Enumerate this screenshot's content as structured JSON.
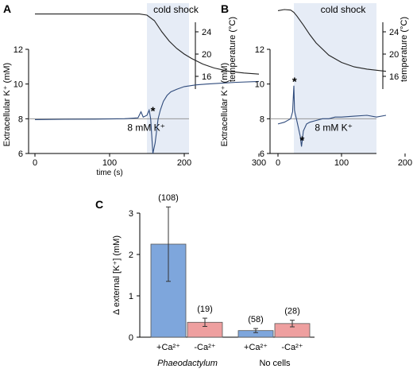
{
  "chart_data": [
    {
      "panel": "A",
      "type": "line",
      "shaded_label": "cold shock",
      "xlabel": "time (s)",
      "ylabel": "Extracellular K⁺ (mM)",
      "y2label": "temperature (°C)",
      "xlim": [
        -15,
        300
      ],
      "ylim": [
        6,
        12
      ],
      "y2lim": [
        14,
        28
      ],
      "x_ticks": [
        "0",
        "100",
        "200",
        "300"
      ],
      "y_ticks": [
        "6",
        "8",
        "10",
        "12"
      ],
      "y2_ticks": [
        "24",
        "20",
        "16"
      ],
      "shaded_range": [
        150,
        300
      ],
      "reference_line": {
        "value": 8,
        "label": "8 mM K⁺"
      },
      "asterisks": [
        {
          "x": 158,
          "y": 8.5
        }
      ],
      "series": [
        {
          "axis": "y2",
          "x": [
            0,
            140,
            150,
            160,
            170,
            180,
            190,
            200,
            210,
            225,
            240,
            260,
            280,
            300
          ],
          "values": [
            27.2,
            27.2,
            27.0,
            26.0,
            24.0,
            22.3,
            21.0,
            20.0,
            19.2,
            18.2,
            17.5,
            16.9,
            16.6,
            16.4
          ]
        },
        {
          "axis": "y",
          "x": [
            0,
            40,
            80,
            120,
            138,
            142,
            145,
            150,
            153,
            155,
            158,
            161,
            163,
            165,
            168,
            172,
            177,
            182,
            190,
            200,
            215,
            230,
            250,
            270,
            300
          ],
          "values": [
            7.95,
            7.97,
            7.98,
            8.0,
            8.05,
            8.4,
            8.1,
            8.2,
            8.5,
            8.0,
            6.0,
            6.6,
            7.3,
            8.0,
            8.5,
            9.0,
            9.35,
            9.55,
            9.7,
            9.85,
            9.95,
            10.0,
            10.05,
            10.1,
            10.15
          ]
        }
      ]
    },
    {
      "panel": "B",
      "type": "line",
      "shaded_label": "cold shock",
      "ylabel": "Extracellular K⁺ (mM)",
      "y2label": "temperature (°C)",
      "xlim": [
        -15,
        170
      ],
      "ylim": [
        6,
        12
      ],
      "y2lim": [
        14,
        28
      ],
      "x_ticks": [
        "0",
        "100",
        "200"
      ],
      "y_ticks": [
        "6",
        "8",
        "10",
        "12"
      ],
      "y2_ticks": [
        "24",
        "20",
        "16"
      ],
      "shaded_range": [
        25,
        170
      ],
      "reference_line": {
        "value": 8,
        "label": "8 mM K⁺"
      },
      "asterisks": [
        {
          "x": 26,
          "y": 10.2
        },
        {
          "x": 38,
          "y": 6.8
        }
      ],
      "series": [
        {
          "axis": "y2",
          "x": [
            0,
            10,
            20,
            25,
            30,
            40,
            50,
            60,
            80,
            100,
            120,
            140,
            170
          ],
          "values": [
            27.8,
            28.0,
            27.9,
            27.5,
            26.8,
            25.2,
            23.5,
            22.0,
            19.8,
            18.5,
            17.7,
            17.3,
            16.9
          ]
        },
        {
          "axis": "y",
          "x": [
            0,
            10,
            20,
            23,
            25,
            26,
            27,
            29,
            32,
            35,
            37,
            40,
            45,
            50,
            60,
            70,
            80,
            90,
            100,
            120,
            140,
            155,
            170
          ],
          "values": [
            7.7,
            7.8,
            8.0,
            8.4,
            9.9,
            8.5,
            8.3,
            8.0,
            7.5,
            7.0,
            6.4,
            7.3,
            7.7,
            7.8,
            7.9,
            8.0,
            8.0,
            8.1,
            8.1,
            8.15,
            8.2,
            8.1,
            8.2
          ]
        }
      ]
    },
    {
      "panel": "C",
      "type": "bar",
      "ylabel": "Δ external [K⁺] (mM)",
      "ylim": [
        0,
        3
      ],
      "y_ticks": [
        "0",
        "1",
        "2",
        "3"
      ],
      "group_labels": [
        "Phaeodactylum",
        "No cells"
      ],
      "bars": [
        {
          "label": "+Ca²⁺",
          "group": 0,
          "value": 2.25,
          "error": 0.9,
          "n": "(108)",
          "color": "#7ea6dc"
        },
        {
          "label": "-Ca²⁺",
          "group": 0,
          "value": 0.36,
          "error": 0.1,
          "n": "(19)",
          "color": "#ee9f9f"
        },
        {
          "label": "+Ca²⁺",
          "group": 1,
          "value": 0.16,
          "error": 0.05,
          "n": "(58)",
          "color": "#7ea6dc"
        },
        {
          "label": "-Ca²⁺",
          "group": 1,
          "value": 0.33,
          "error": 0.08,
          "n": "(28)",
          "color": "#ee9f9f"
        }
      ]
    }
  ]
}
